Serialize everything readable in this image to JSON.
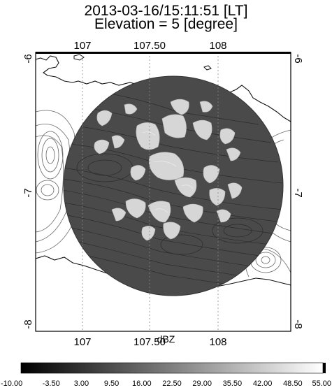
{
  "title": {
    "timestamp": "2013-03-16/15:11:51 [LT]",
    "elevation": "Elevation = 5 [degree]"
  },
  "map": {
    "lon_range": [
      106.68,
      108.66
    ],
    "lat_range": [
      -8.1,
      -6.02
    ],
    "lon_ticks_top": [
      "107",
      "107.50",
      "108"
    ],
    "lon_ticks_bottom": [
      "107",
      "107.50",
      "108"
    ],
    "lon_tick_values": [
      107.0,
      107.5,
      108.0
    ],
    "lat_ticks_left": [
      "-6",
      "-7",
      "-8"
    ],
    "lat_ticks_right": [
      "-6",
      "-7",
      "-8"
    ],
    "lat_tick_values": [
      -6.0,
      -7.0,
      -8.0
    ],
    "radar_center": [
      107.62,
      -6.92
    ],
    "radar_range_deg": 0.82,
    "colors": {
      "radar_disk": "#4a4a4a",
      "echo": "#d9d9d9",
      "land_contour": "#555555",
      "coast": "#111111"
    }
  },
  "colorbar": {
    "unit": "dBZ",
    "min": -10.0,
    "max": 55.0,
    "ticks": [
      "-10.00",
      "-3.50",
      "3.00",
      "9.50",
      "16.00",
      "22.50",
      "29.00",
      "35.50",
      "42.00",
      "48.50",
      "55.00"
    ],
    "gradient_from": "#000000",
    "gradient_to": "#ffffff"
  }
}
